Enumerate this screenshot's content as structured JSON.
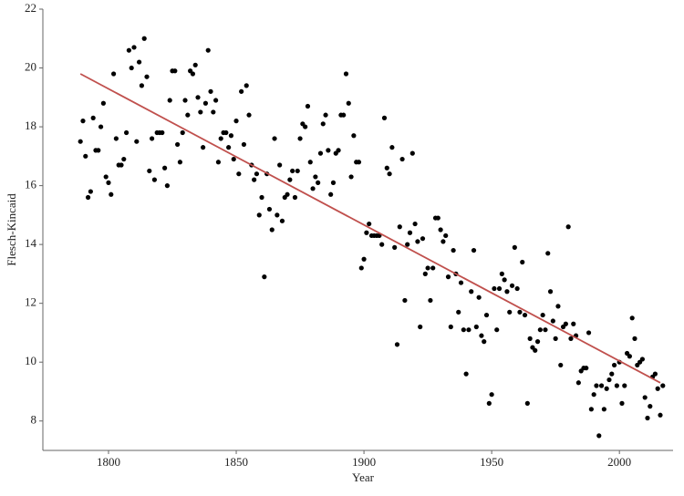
{
  "chart_data": {
    "type": "scatter",
    "x_label": "Year",
    "y_label": "Flesch-Kincaid",
    "xlim": [
      1774.3,
      2021
    ],
    "ylim": [
      7,
      22
    ],
    "xticks": [
      1800,
      1850,
      1900,
      1950,
      2000
    ],
    "yticks": [
      8,
      10,
      12,
      14,
      16,
      18,
      20,
      22
    ],
    "grid": false,
    "series": [
      {
        "color": "#000000",
        "x": [
          1789,
          1790,
          1791,
          1792,
          1793,
          1794,
          1795,
          1796,
          1797,
          1798,
          1799,
          1800,
          1801,
          1802,
          1803,
          1804,
          1805,
          1806,
          1807,
          1808,
          1809,
          1810,
          1811,
          1812,
          1813,
          1814,
          1815,
          1816,
          1817,
          1818,
          1819,
          1820,
          1821,
          1822,
          1823,
          1824,
          1825,
          1826,
          1827,
          1828,
          1829,
          1830,
          1831,
          1832,
          1833,
          1834,
          1835,
          1836,
          1837,
          1838,
          1839,
          1840,
          1841,
          1842,
          1843,
          1844,
          1845,
          1846,
          1847,
          1848,
          1849,
          1850,
          1851,
          1852,
          1853,
          1854,
          1855,
          1856,
          1857,
          1858,
          1859,
          1860,
          1861,
          1862,
          1863,
          1864,
          1865,
          1866,
          1867,
          1868,
          1869,
          1870,
          1871,
          1872,
          1873,
          1874,
          1875,
          1876,
          1877,
          1878,
          1879,
          1880,
          1881,
          1882,
          1883,
          1884,
          1885,
          1886,
          1887,
          1888,
          1889,
          1890,
          1891,
          1892,
          1893,
          1894,
          1895,
          1896,
          1897,
          1898,
          1899,
          1900,
          1901,
          1902,
          1903,
          1904,
          1905,
          1906,
          1907,
          1908,
          1909,
          1910,
          1911,
          1912,
          1913,
          1914,
          1915,
          1916,
          1917,
          1918,
          1919,
          1920,
          1921,
          1922,
          1923,
          1924,
          1925,
          1926,
          1927,
          1928,
          1929,
          1930,
          1931,
          1932,
          1933,
          1934,
          1935,
          1936,
          1937,
          1938,
          1939,
          1940,
          1941,
          1942,
          1943,
          1944,
          1945,
          1946,
          1947,
          1948,
          1949,
          1950,
          1951,
          1952,
          1953,
          1954,
          1955,
          1956,
          1957,
          1958,
          1959,
          1960,
          1961,
          1962,
          1963,
          1964,
          1965,
          1966,
          1967,
          1968,
          1969,
          1970,
          1971,
          1972,
          1973,
          1974,
          1975,
          1976,
          1977,
          1978,
          1979,
          1980,
          1981,
          1982,
          1983,
          1984,
          1985,
          1986,
          1987,
          1988,
          1989,
          1990,
          1991,
          1992,
          1993,
          1994,
          1995,
          1996,
          1997,
          1998,
          1999,
          2000,
          2001,
          2002,
          2003,
          2004,
          2005,
          2006,
          2007,
          2008,
          2009,
          2010,
          2011,
          2012,
          2013,
          2014,
          2015,
          2016,
          2017
        ],
        "values": [
          17.5,
          18.2,
          17.0,
          15.6,
          15.8,
          18.3,
          17.2,
          17.2,
          18.0,
          18.8,
          16.3,
          16.1,
          15.7,
          19.8,
          17.6,
          16.7,
          16.7,
          16.9,
          17.8,
          20.6,
          20.0,
          20.7,
          17.5,
          20.2,
          19.4,
          21.0,
          19.7,
          16.5,
          17.6,
          16.2,
          17.8,
          17.8,
          17.8,
          16.6,
          16.0,
          18.9,
          19.9,
          19.9,
          17.4,
          16.8,
          17.8,
          18.9,
          18.4,
          19.9,
          19.8,
          20.1,
          19.0,
          18.5,
          17.3,
          18.8,
          20.6,
          19.2,
          18.5,
          18.9,
          16.8,
          17.6,
          17.8,
          17.8,
          17.3,
          17.7,
          16.9,
          18.2,
          16.4,
          19.2,
          17.4,
          19.4,
          18.4,
          16.7,
          16.2,
          16.4,
          15.0,
          15.6,
          12.9,
          16.4,
          15.2,
          14.5,
          17.6,
          15.0,
          16.7,
          14.8,
          15.6,
          15.7,
          16.2,
          16.5,
          15.6,
          16.5,
          17.6,
          18.1,
          18.0,
          18.7,
          16.8,
          15.9,
          16.3,
          16.1,
          17.1,
          18.1,
          18.4,
          17.2,
          15.7,
          16.1,
          17.1,
          17.2,
          18.4,
          18.4,
          19.8,
          18.8,
          16.3,
          17.7,
          16.8,
          16.8,
          13.2,
          13.5,
          14.4,
          14.7,
          14.3,
          14.3,
          14.3,
          14.3,
          14.0,
          18.3,
          16.6,
          16.4,
          17.3,
          13.9,
          10.6,
          14.6,
          16.9,
          12.1,
          14.0,
          14.4,
          17.1,
          14.7,
          14.1,
          11.2,
          14.2,
          13.0,
          13.2,
          12.1,
          13.2,
          14.9,
          14.9,
          14.5,
          14.1,
          14.3,
          12.9,
          11.2,
          13.8,
          13.0,
          11.7,
          12.7,
          11.1,
          9.6,
          11.1,
          12.4,
          13.8,
          11.2,
          12.2,
          10.9,
          10.7,
          11.6,
          8.6,
          8.9,
          12.5,
          11.1,
          12.5,
          13.0,
          12.8,
          12.4,
          11.7,
          12.6,
          13.9,
          12.5,
          11.7,
          13.4,
          11.6,
          8.6,
          10.8,
          10.5,
          10.4,
          10.7,
          11.1,
          11.6,
          11.1,
          13.7,
          12.4,
          11.4,
          10.8,
          11.9,
          9.9,
          11.2,
          11.3,
          14.6,
          10.8,
          11.3,
          10.9,
          9.3,
          9.7,
          9.8,
          9.8,
          11.0,
          8.4,
          8.9,
          9.2,
          7.5,
          9.2,
          8.4,
          9.1,
          9.4,
          9.6,
          9.9,
          9.2,
          10.0,
          8.6,
          9.2,
          10.3,
          10.2,
          11.5,
          10.8,
          9.9,
          10.0,
          10.1,
          8.8,
          8.1,
          8.5,
          9.5,
          9.6,
          9.1,
          8.2,
          9.2
        ]
      },
      {
        "type": "line",
        "color": "#c0504d",
        "x": [
          1789,
          2016
        ],
        "values": [
          19.8,
          9.3
        ]
      }
    ]
  }
}
